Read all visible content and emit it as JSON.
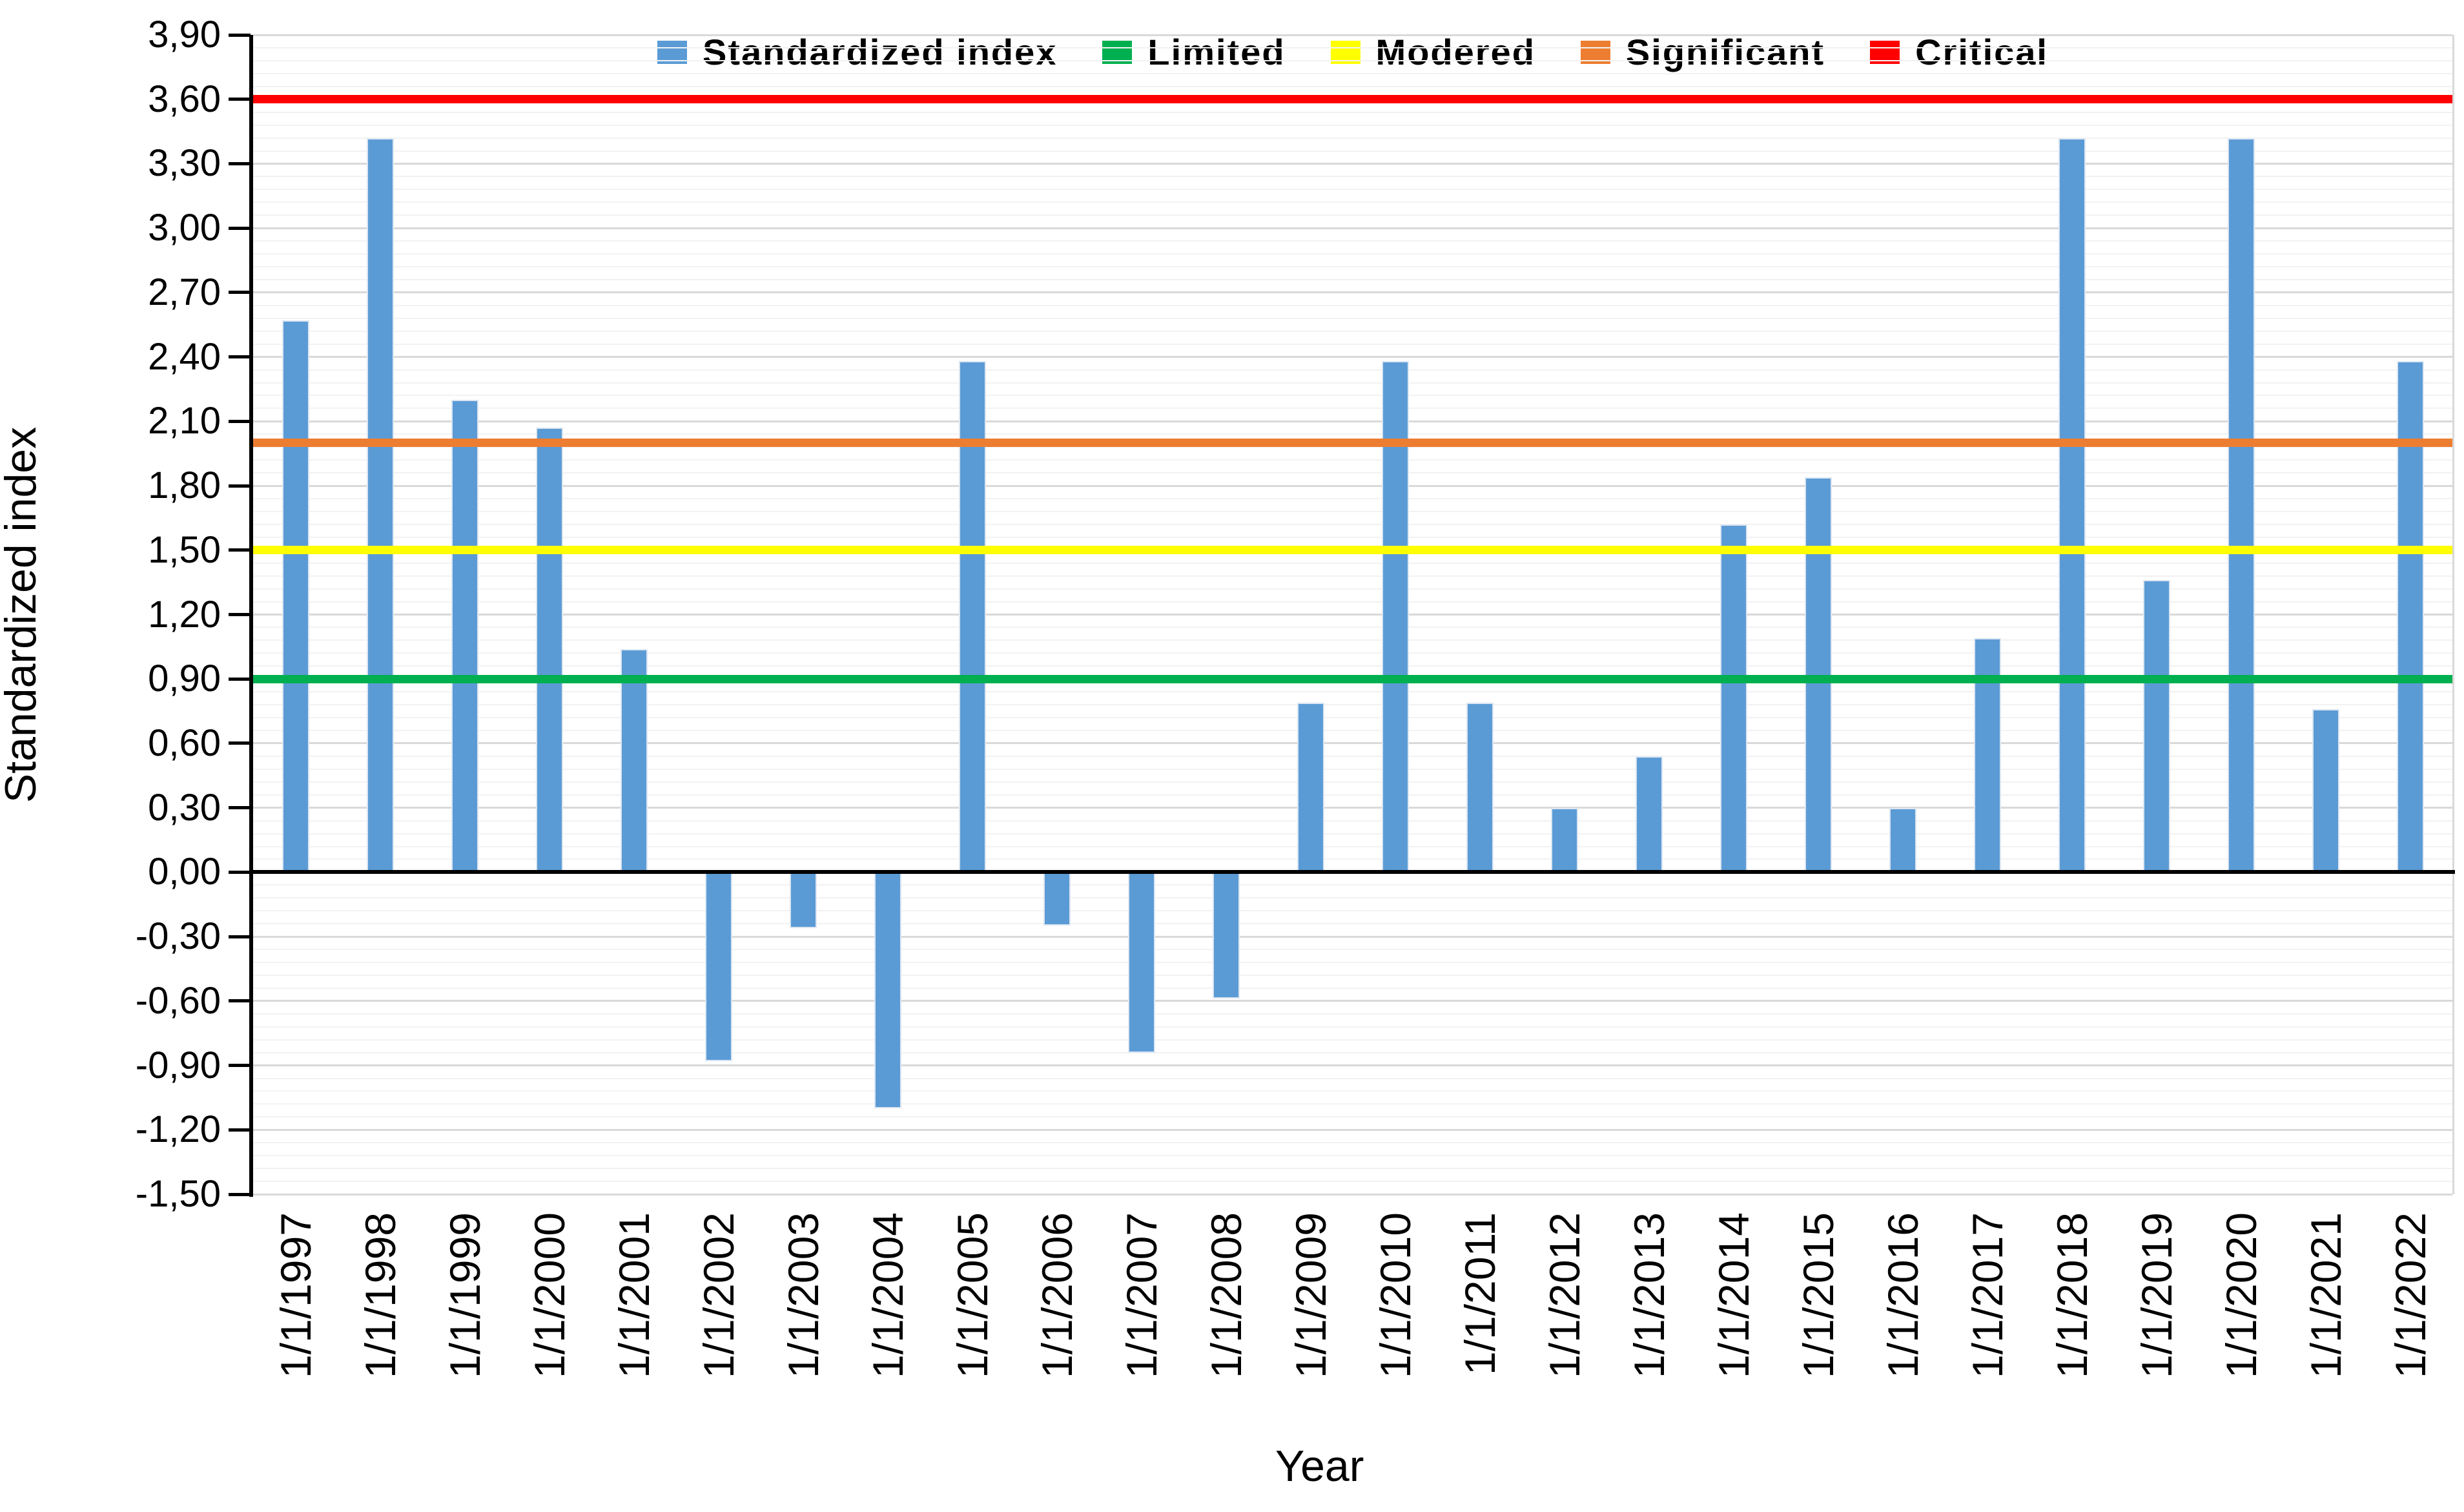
{
  "chart_data": {
    "type": "bar",
    "title": "",
    "xlabel": "Year",
    "ylabel": "Standardized index",
    "grid": true,
    "legend_position": "top",
    "ylim": [
      -1.5,
      3.9
    ],
    "y_major_step": 0.3,
    "y_minor_step": 0.06,
    "decimal_separator": ",",
    "y_tick_labels": [
      "3,90",
      "3,60",
      "3,30",
      "3,00",
      "2,70",
      "2,40",
      "2,10",
      "1,80",
      "1,50",
      "1,20",
      "0,90",
      "0,60",
      "0,30",
      "0,00",
      "-0,30",
      "-0,60",
      "-0,90",
      "-1,20",
      "-1,50"
    ],
    "y_tick_values": [
      3.9,
      3.6,
      3.3,
      3.0,
      2.7,
      2.4,
      2.1,
      1.8,
      1.5,
      1.2,
      0.9,
      0.6,
      0.3,
      0.0,
      -0.3,
      -0.6,
      -0.9,
      -1.2,
      -1.5
    ],
    "categories": [
      "1/1/1997",
      "1/1/1998",
      "1/1/1999",
      "1/1/2000",
      "1/1/2001",
      "1/1/2002",
      "1/1/2003",
      "1/1/2004",
      "1/1/2005",
      "1/1/2006",
      "1/1/2007",
      "1/1/2008",
      "1/1/2009",
      "1/1/2010",
      "1/1/2011",
      "1/1/2012",
      "1/1/2013",
      "1/1/2014",
      "1/1/2015",
      "1/1/2016",
      "1/1/2017",
      "1/1/2018",
      "1/1/2019",
      "1/1/2020",
      "1/1/2021",
      "1/1/2022"
    ],
    "series": [
      {
        "name": "Standardized index",
        "color": "#5B9BD5",
        "values": [
          2.57,
          3.42,
          2.2,
          2.07,
          1.04,
          -0.88,
          -0.26,
          -1.1,
          2.38,
          -0.25,
          -0.84,
          -0.59,
          0.79,
          2.38,
          0.79,
          0.3,
          0.54,
          1.62,
          1.84,
          0.3,
          1.09,
          3.42,
          1.36,
          3.42,
          0.76,
          2.38
        ]
      }
    ],
    "thresholds": [
      {
        "name": "Limited",
        "value": 0.9,
        "color": "#00B050"
      },
      {
        "name": "Modered",
        "value": 1.5,
        "color": "#FFFF00"
      },
      {
        "name": "Significant",
        "value": 2.0,
        "color": "#ED7D31"
      },
      {
        "name": "Critical",
        "value": 3.6,
        "color": "#FF0000"
      }
    ],
    "legend": [
      "Standardized index",
      "Limited",
      "Modered",
      "Significant",
      "Critical"
    ]
  },
  "styles": {
    "bar_color": "#5B9BD5",
    "axis_color": "#000000",
    "major_grid_color": "#D9D9D9",
    "minor_grid_color": "#F2F2F2",
    "text_color": "#000000",
    "background": "#FFFFFF"
  }
}
